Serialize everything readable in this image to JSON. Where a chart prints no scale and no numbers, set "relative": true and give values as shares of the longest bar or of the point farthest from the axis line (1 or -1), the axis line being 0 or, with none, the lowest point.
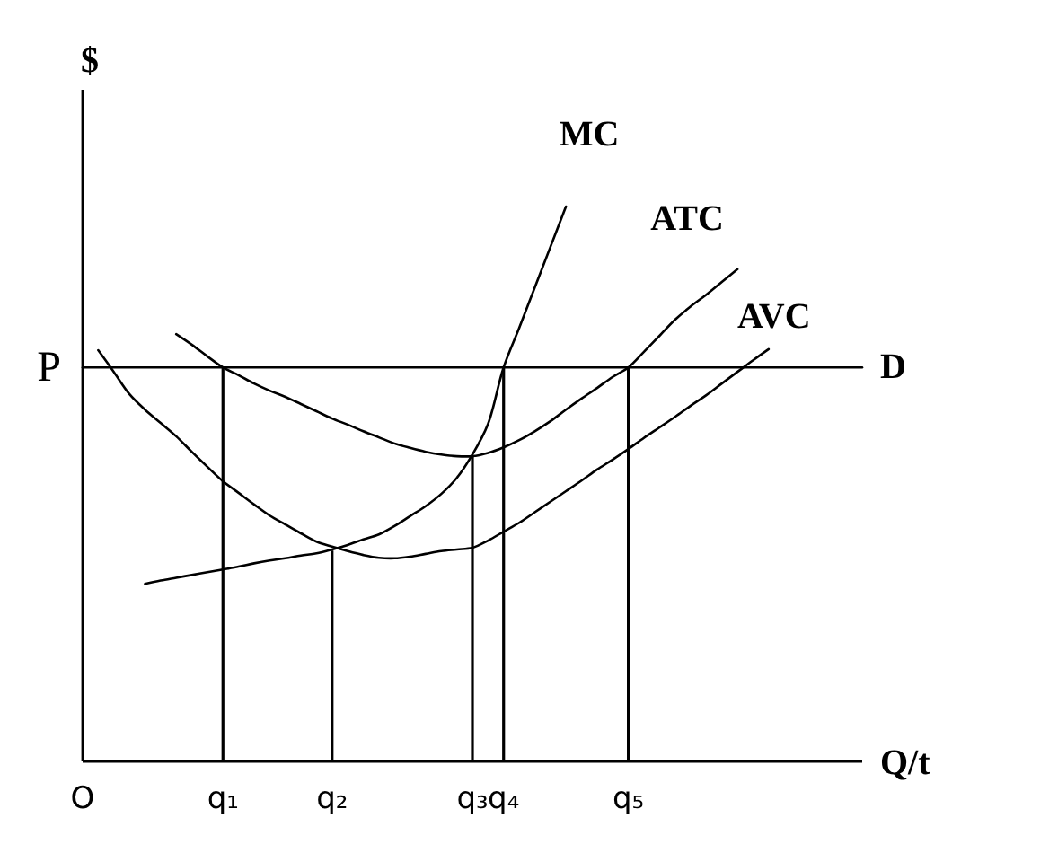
{
  "chart_data": {
    "type": "line",
    "relative": true,
    "xlabel": "Q/t",
    "ylabel": "$",
    "categories": [
      "O",
      null,
      null,
      null,
      null,
      null,
      null,
      null,
      null,
      "q₁",
      null,
      null,
      null,
      null,
      null,
      null,
      "q₂",
      null,
      null,
      null,
      null,
      null,
      null,
      null,
      null,
      "q₃",
      null,
      "q₄",
      null,
      null,
      null,
      null,
      null,
      null,
      null,
      "q₅",
      null,
      null,
      null,
      null,
      null,
      null,
      null,
      null,
      null,
      null,
      null,
      null,
      null,
      null,
      null
    ],
    "series": [
      {
        "name": "MC",
        "color": "#000000",
        "values": [
          null,
          null,
          null,
          null,
          0.32,
          0.326,
          0.331,
          0.336,
          0.341,
          0.346,
          0.351,
          0.357,
          0.362,
          0.366,
          0.371,
          0.375,
          0.382,
          0.39,
          0.4,
          0.409,
          0.424,
          0.442,
          0.46,
          0.482,
          0.511,
          0.553,
          0.608,
          0.71,
          0.781,
          0.854,
          0.927,
          1,
          null,
          null,
          null,
          null,
          null,
          null,
          null,
          null,
          null,
          null,
          null,
          null,
          null,
          null,
          null,
          null,
          null,
          null,
          null
        ]
      },
      {
        "name": "ATC",
        "color": "#000000",
        "values": [
          null,
          null,
          null,
          null,
          null,
          null,
          0.77,
          0.751,
          0.73,
          0.71,
          0.696,
          0.681,
          0.668,
          0.657,
          0.644,
          0.631,
          0.618,
          0.607,
          0.595,
          0.584,
          0.573,
          0.565,
          0.558,
          0.553,
          0.55,
          0.55,
          0.556,
          0.566,
          0.579,
          0.595,
          0.613,
          0.634,
          0.654,
          0.673,
          0.693,
          0.71,
          0.738,
          0.767,
          0.796,
          0.82,
          0.841,
          0.864,
          0.887,
          null,
          null,
          null,
          null,
          null,
          null,
          null,
          null
        ]
      },
      {
        "name": "AVC",
        "color": "#000000",
        "values": [
          null,
          0.741,
          0.702,
          0.662,
          0.634,
          0.61,
          0.586,
          0.558,
          0.531,
          0.505,
          0.484,
          0.463,
          0.443,
          0.427,
          0.411,
          0.396,
          0.387,
          0.379,
          0.372,
          0.367,
          0.366,
          0.369,
          0.374,
          0.379,
          0.382,
          0.385,
          0.398,
          0.414,
          0.43,
          0.449,
          0.468,
          0.487,
          0.506,
          0.526,
          0.544,
          0.563,
          0.583,
          0.602,
          0.621,
          0.641,
          0.66,
          0.681,
          0.702,
          0.723,
          0.743,
          null,
          null,
          null,
          null,
          null,
          null
        ]
      },
      {
        "name": "D",
        "color": "#000000",
        "values": [
          0.71,
          0.71,
          0.71,
          0.71,
          0.71,
          0.71,
          0.71,
          0.71,
          0.71,
          0.71,
          0.71,
          0.71,
          0.71,
          0.71,
          0.71,
          0.71,
          0.71,
          0.71,
          0.71,
          0.71,
          0.71,
          0.71,
          0.71,
          0.71,
          0.71,
          0.71,
          0.71,
          0.71,
          0.71,
          0.71,
          0.71,
          0.71,
          0.71,
          0.71,
          0.71,
          0.71,
          0.71,
          0.71,
          0.71,
          0.71,
          0.71,
          0.71,
          0.71,
          0.71,
          0.71,
          0.71,
          0.71,
          0.71,
          0.71,
          0.71,
          0.71
        ]
      },
      {
        "type": "bar",
        "color": "#000000",
        "values": [
          null,
          null,
          null,
          null,
          null,
          null,
          null,
          null,
          null,
          0.71,
          null,
          null,
          null,
          null,
          null,
          null,
          0.38,
          null,
          null,
          null,
          null,
          null,
          null,
          null,
          null,
          0.55,
          null,
          0.71,
          null,
          null,
          null,
          null,
          null,
          null,
          null,
          0.71,
          null,
          null,
          null,
          null,
          null,
          null,
          null,
          null,
          null,
          null,
          null,
          null,
          null,
          null,
          null
        ]
      }
    ],
    "annotations": [
      "P"
    ]
  }
}
